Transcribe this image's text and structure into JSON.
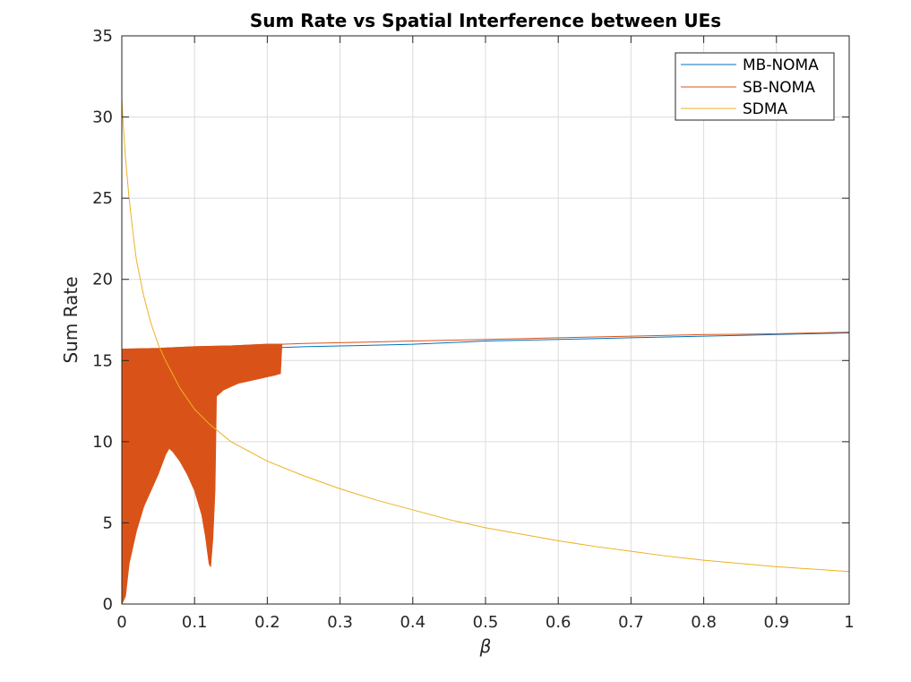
{
  "chart_data": {
    "type": "line",
    "title": "Sum Rate vs Spatial Interference between UEs",
    "xlabel": "β",
    "ylabel": "Sum Rate",
    "xlim": [
      0,
      1
    ],
    "ylim": [
      0,
      35
    ],
    "xticks": [
      0,
      0.1,
      0.2,
      0.3,
      0.4,
      0.5,
      0.6,
      0.7,
      0.8,
      0.9,
      1
    ],
    "xtick_labels": [
      "0",
      "0.1",
      "0.2",
      "0.3",
      "0.4",
      "0.5",
      "0.6",
      "0.7",
      "0.8",
      "0.9",
      "1"
    ],
    "yticks": [
      0,
      5,
      10,
      15,
      20,
      25,
      30,
      35
    ],
    "ytick_labels": [
      "0",
      "5",
      "10",
      "15",
      "20",
      "25",
      "30",
      "35"
    ],
    "grid": true,
    "legend_position": "top-right",
    "series": [
      {
        "name": "MB-NOMA",
        "color": "#0072BD",
        "x": [
          0.22,
          0.25,
          0.3,
          0.35,
          0.4,
          0.45,
          0.5,
          0.55,
          0.6,
          0.65,
          0.7,
          0.75,
          0.8,
          0.85,
          0.9,
          0.95,
          1.0
        ],
        "y": [
          15.8,
          15.85,
          15.9,
          15.95,
          16.0,
          16.1,
          16.2,
          16.25,
          16.3,
          16.35,
          16.4,
          16.45,
          16.5,
          16.55,
          16.6,
          16.65,
          16.7
        ]
      },
      {
        "name": "SB-NOMA",
        "color": "#D95319",
        "x": [
          0,
          0.05,
          0.1,
          0.15,
          0.2,
          0.22,
          0.25,
          0.3,
          0.35,
          0.4,
          0.45,
          0.5,
          0.55,
          0.6,
          0.65,
          0.7,
          0.75,
          0.8,
          0.85,
          0.9,
          0.95,
          1.0
        ],
        "y": [
          15.7,
          15.75,
          15.85,
          15.9,
          16.0,
          16.0,
          16.05,
          16.1,
          16.15,
          16.2,
          16.25,
          16.3,
          16.35,
          16.4,
          16.45,
          16.5,
          16.55,
          16.6,
          16.62,
          16.65,
          16.7,
          16.75
        ],
        "oscillation_upper": {
          "x": [
            0,
            0.05,
            0.1,
            0.15,
            0.2,
            0.22
          ],
          "y": [
            15.7,
            15.75,
            15.85,
            15.9,
            16.0,
            16.0
          ]
        },
        "oscillation_lower": {
          "x": [
            0,
            0.005,
            0.01,
            0.02,
            0.03,
            0.04,
            0.05,
            0.06,
            0.065,
            0.07,
            0.08,
            0.09,
            0.1,
            0.11,
            0.115,
            0.12,
            0.122,
            0.125,
            0.128,
            0.13,
            0.135,
            0.14,
            0.15,
            0.16,
            0.17,
            0.18,
            0.19,
            0.2,
            0.21,
            0.218
          ],
          "y": [
            0,
            0.5,
            2.5,
            4.5,
            6.0,
            7.0,
            8.0,
            9.2,
            9.6,
            9.4,
            8.8,
            8.0,
            7.0,
            5.5,
            4.2,
            2.5,
            2.3,
            4.0,
            7.0,
            12.8,
            13.0,
            13.2,
            13.4,
            13.6,
            13.7,
            13.8,
            13.9,
            14.0,
            14.1,
            14.2
          ]
        }
      },
      {
        "name": "SDMA",
        "color": "#EDB120",
        "x": [
          0.0,
          0.002,
          0.005,
          0.01,
          0.015,
          0.02,
          0.03,
          0.04,
          0.05,
          0.06,
          0.08,
          0.1,
          0.12,
          0.15,
          0.2,
          0.25,
          0.3,
          0.35,
          0.4,
          0.45,
          0.5,
          0.55,
          0.6,
          0.65,
          0.7,
          0.75,
          0.8,
          0.85,
          0.9,
          0.95,
          1.0
        ],
        "y": [
          31.1,
          29.5,
          27.5,
          25.0,
          23.0,
          21.2,
          19.0,
          17.3,
          16.0,
          15.0,
          13.3,
          12.0,
          11.1,
          10.0,
          8.8,
          7.9,
          7.1,
          6.4,
          5.8,
          5.2,
          4.7,
          4.3,
          3.9,
          3.55,
          3.25,
          2.95,
          2.7,
          2.5,
          2.3,
          2.15,
          2.0
        ]
      }
    ]
  }
}
